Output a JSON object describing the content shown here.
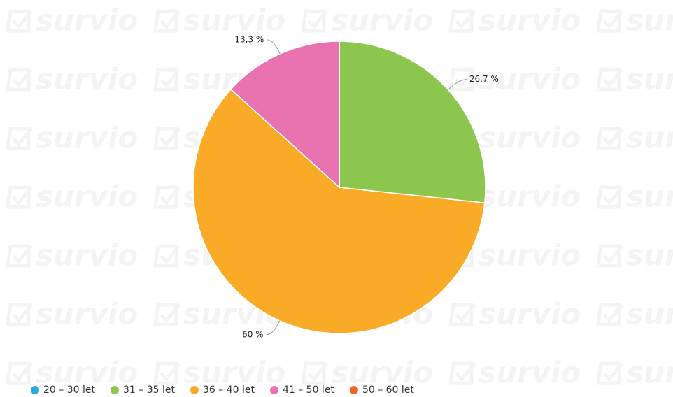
{
  "chart_data": {
    "type": "pie",
    "watermark": "survio",
    "categories": [
      "20 – 30 let",
      "31 – 35 let",
      "36 – 40 let",
      "41 – 50 let",
      "50 – 60 let"
    ],
    "values": [
      0,
      26.7,
      60,
      13.3,
      0
    ],
    "value_labels": [
      null,
      "26,7 %",
      "60 %",
      "13,3 %",
      null
    ],
    "colors": [
      "#2aa9e0",
      "#8dc64f",
      "#f9ab28",
      "#e873b0",
      "#f06424"
    ],
    "legend": "bottom-left"
  }
}
